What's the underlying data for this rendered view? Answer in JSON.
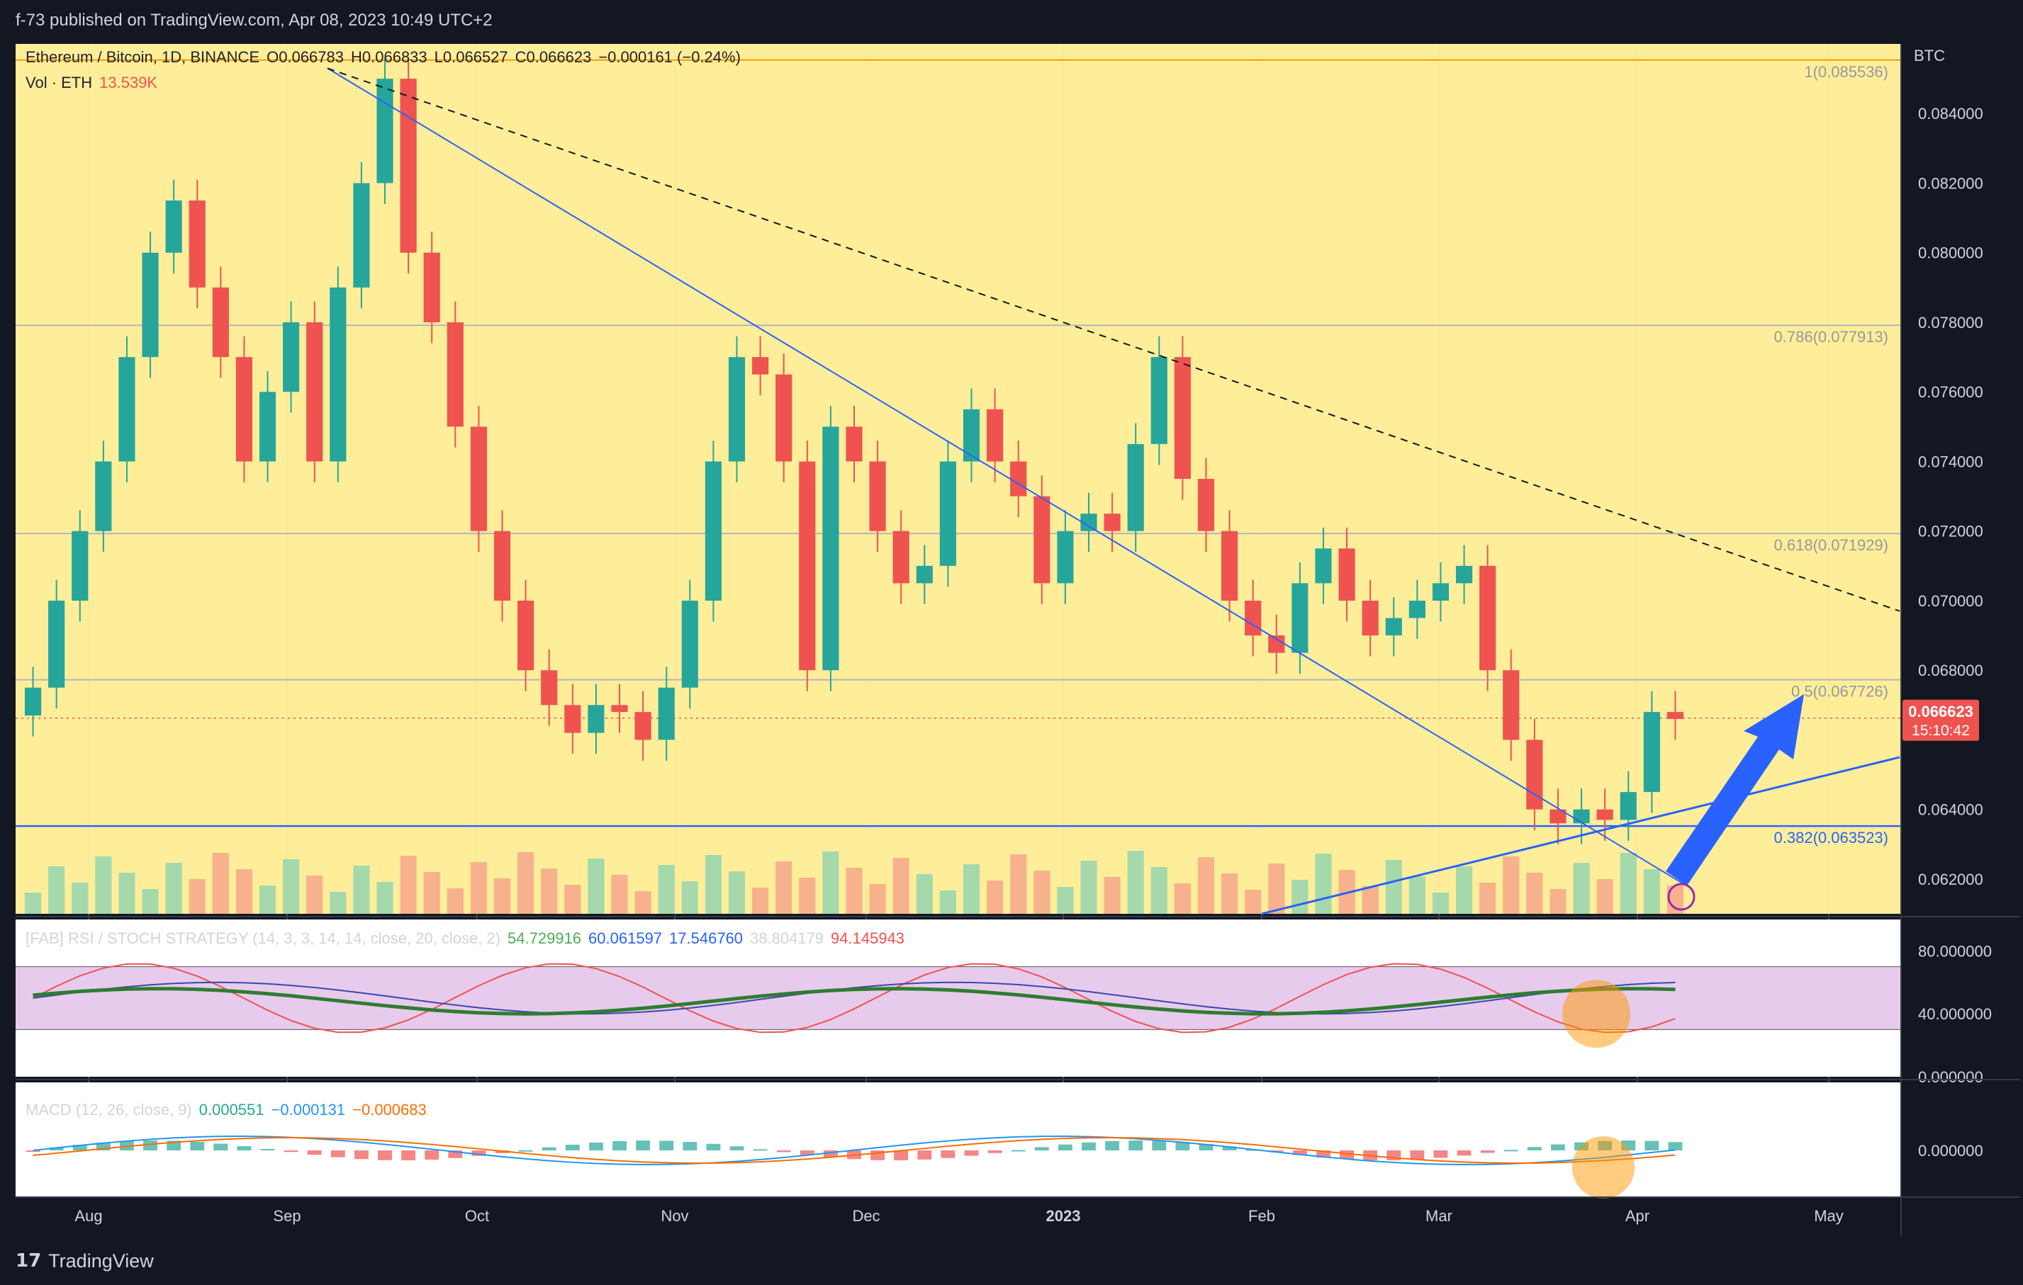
{
  "header": {
    "published": "f-73 published on TradingView.com, Apr 08, 2023 10:49 UTC+2"
  },
  "brand": {
    "name": "TradingView"
  },
  "legend": {
    "symbol": "Ethereum / Bitcoin, 1D, BINANCE",
    "open": "O0.066783",
    "high": "H0.066833",
    "low": "L0.066527",
    "close": "C0.066623",
    "change": "−0.000161 (−0.24%)",
    "vol_label": "Vol · ETH",
    "vol_value": "13.539K",
    "rsi_label": "[FAB] RSI / STOCH STRATEGY (14, 3, 3, 14, 14, close, 20, close, 2)",
    "rsi_values": [
      "54.729916",
      "60.061597",
      "17.546760",
      "38.804179",
      "94.145943"
    ],
    "macd_label": "MACD (12, 26, close, 9)",
    "macd_values": [
      "0.000551",
      "−0.000131",
      "−0.000683"
    ]
  },
  "colors": {
    "bg": "#131722",
    "panel": "#ffee99",
    "up": "#26a69a",
    "down": "#ef5350",
    "line": "#2962ff",
    "rsi_band": "#e1bee7",
    "orange": "#ff9800"
  },
  "chart_data": {
    "type": "candlestick",
    "currency": "BTC",
    "current_price": "0.066623",
    "countdown": "15:10:42",
    "x_labels": [
      "Aug",
      "Sep",
      "Oct",
      "Nov",
      "Dec",
      "2023",
      "Feb",
      "Mar",
      "Apr",
      "May"
    ],
    "y_ticks": [
      "0.084000",
      "0.082000",
      "0.080000",
      "0.078000",
      "0.076000",
      "0.074000",
      "0.072000",
      "0.070000",
      "0.068000",
      "0.064000",
      "0.062000"
    ],
    "ylim": [
      0.061,
      0.086
    ],
    "fib_levels": [
      {
        "label": "1(0.085536)",
        "value": 0.085536
      },
      {
        "label": "0.786(0.077913)",
        "value": 0.077913
      },
      {
        "label": "0.618(0.071929)",
        "value": 0.071929
      },
      {
        "label": "0.5(0.067726)",
        "value": 0.067726
      },
      {
        "label": "0.382(0.063523)",
        "value": 0.063523
      }
    ],
    "closes_approx": [
      0.0675,
      0.07,
      0.072,
      0.074,
      0.077,
      0.08,
      0.0815,
      0.079,
      0.077,
      0.074,
      0.076,
      0.078,
      0.074,
      0.079,
      0.082,
      0.085,
      0.08,
      0.078,
      0.075,
      0.072,
      0.07,
      0.068,
      0.067,
      0.0662,
      0.067,
      0.0668,
      0.066,
      0.0675,
      0.07,
      0.074,
      0.077,
      0.0765,
      0.074,
      0.068,
      0.075,
      0.074,
      0.072,
      0.0705,
      0.071,
      0.074,
      0.0755,
      0.074,
      0.073,
      0.0705,
      0.072,
      0.0725,
      0.072,
      0.0745,
      0.077,
      0.0735,
      0.072,
      0.07,
      0.069,
      0.0685,
      0.0705,
      0.0715,
      0.07,
      0.069,
      0.0695,
      0.07,
      0.0705,
      0.071,
      0.068,
      0.066,
      0.064,
      0.0636,
      0.064,
      0.0637,
      0.0645,
      0.0668,
      0.0666
    ],
    "rsi_ticks": [
      "80.000000",
      "40.000000",
      "0.000000"
    ],
    "macd_ticks": [
      "0.000000"
    ]
  }
}
